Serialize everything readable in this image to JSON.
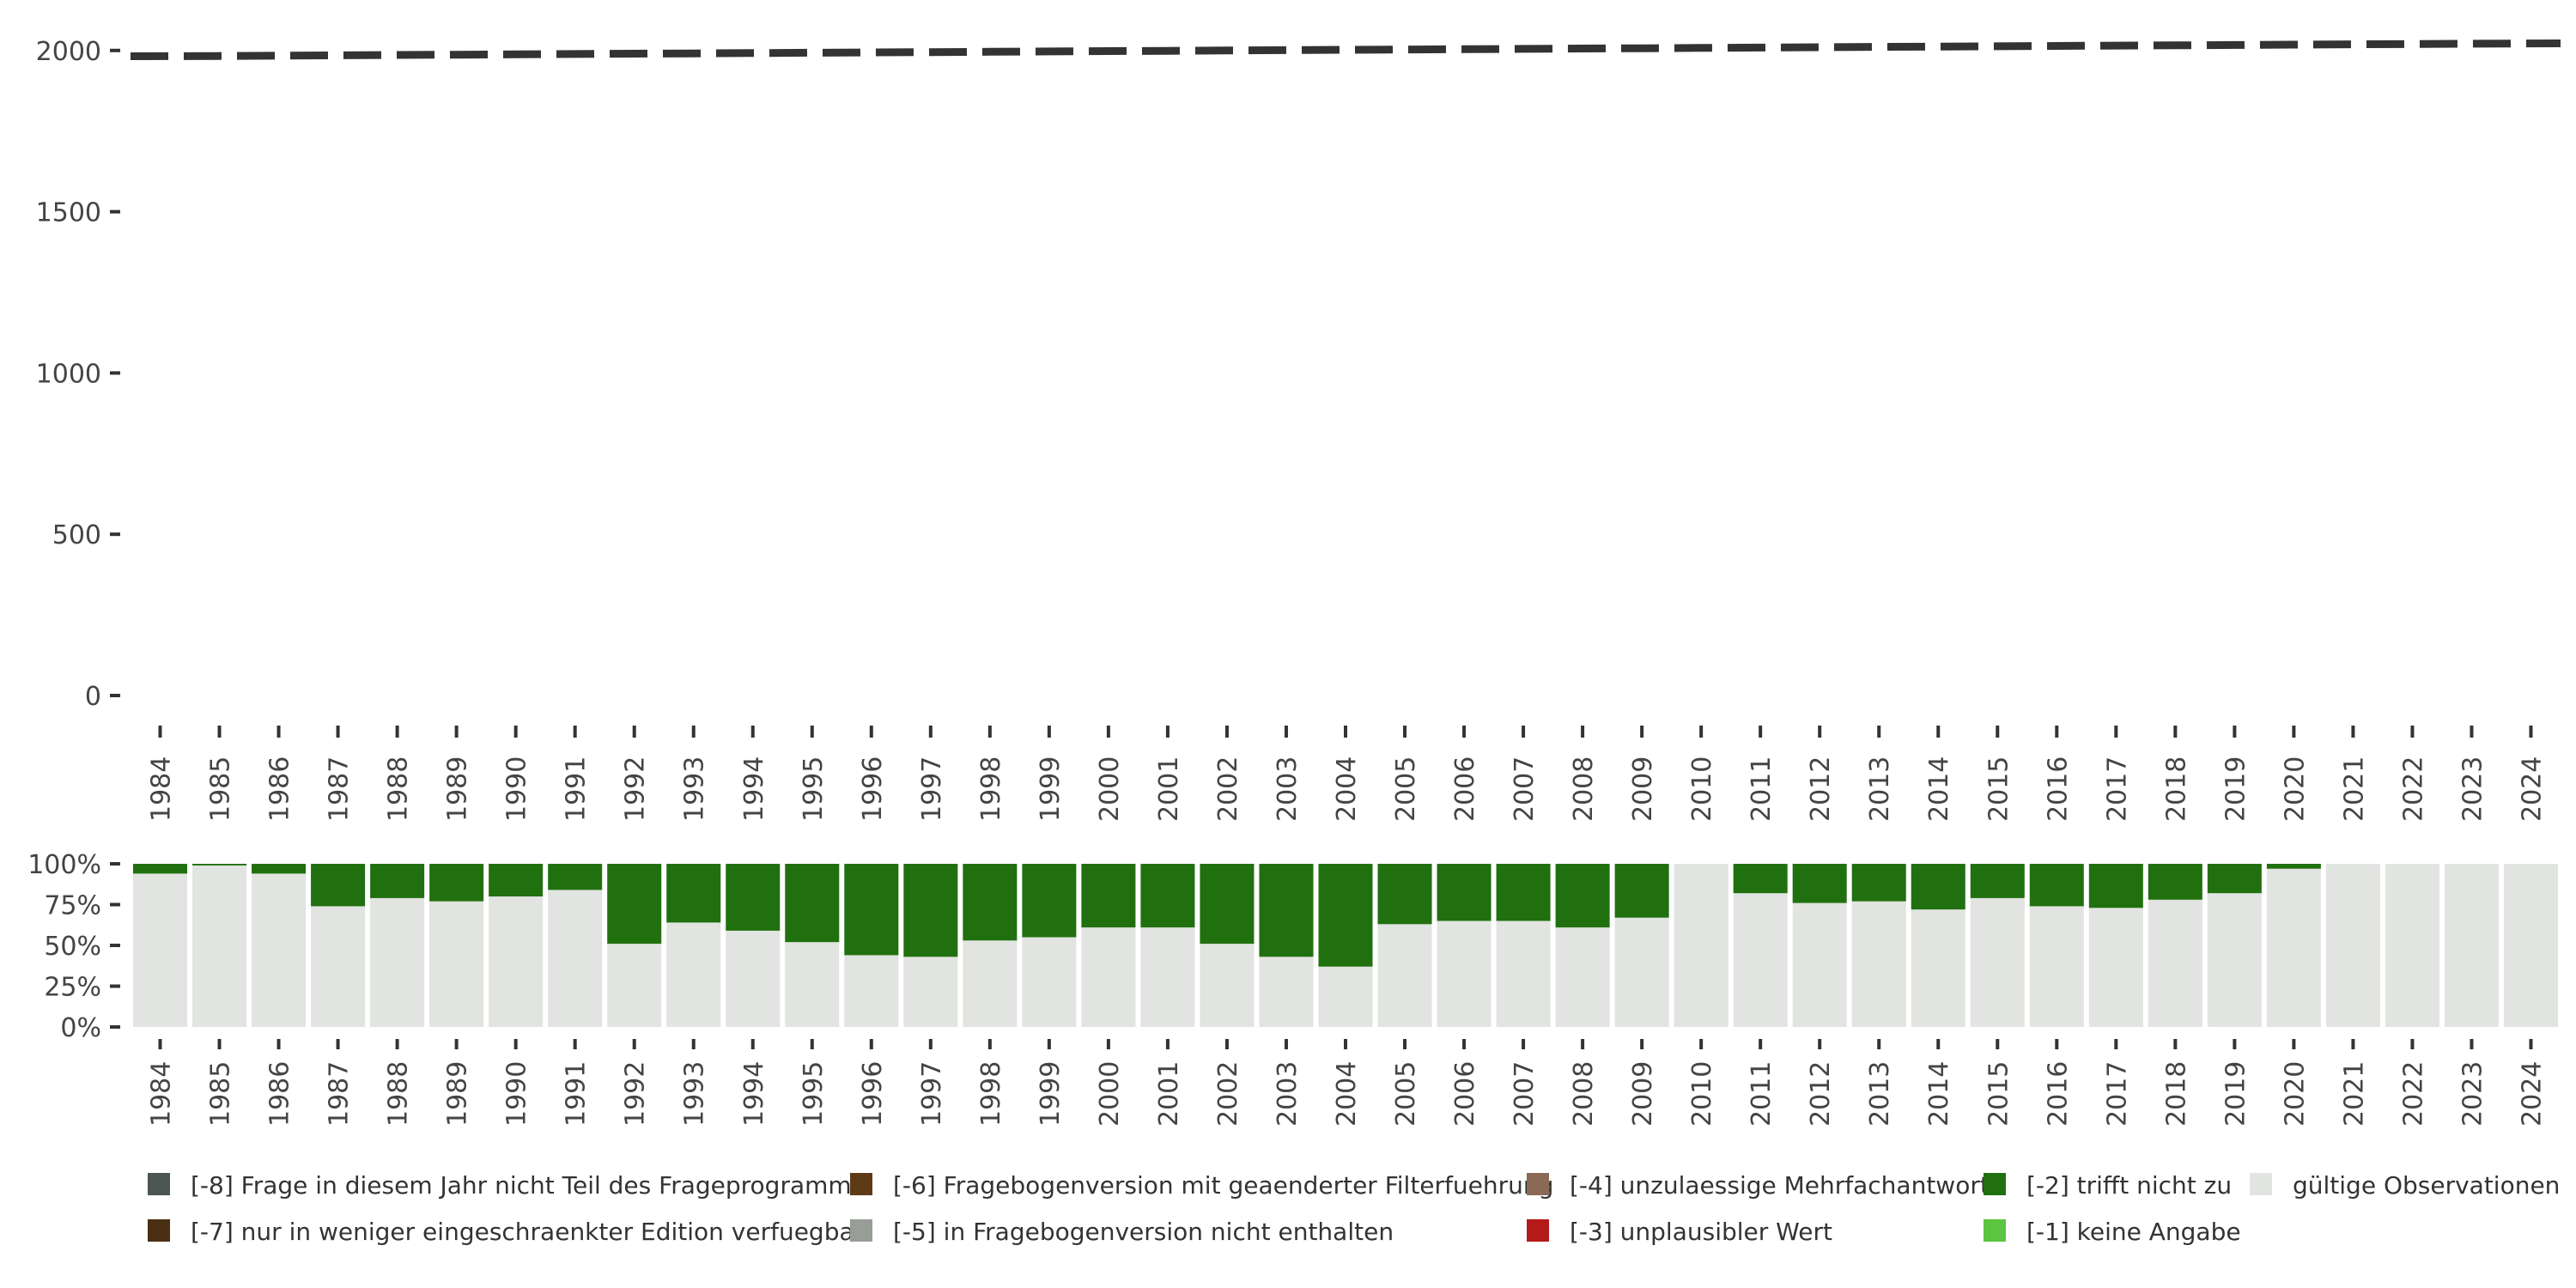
{
  "chart_data": [
    {
      "type": "line",
      "title": "",
      "xlabel": "",
      "ylabel": "",
      "x": [
        1984,
        1985,
        1986,
        1987,
        1988,
        1989,
        1990,
        1991,
        1992,
        1993,
        1994,
        1995,
        1996,
        1997,
        1998,
        1999,
        2000,
        2001,
        2002,
        2003,
        2004,
        2005,
        2006,
        2007,
        2008,
        2009,
        2010,
        2011,
        2012,
        2013,
        2014,
        2015,
        2016,
        2017,
        2018,
        2019,
        2020,
        2021,
        2022,
        2023,
        2024
      ],
      "xticks": [
        "1984",
        "1985",
        "1986",
        "1987",
        "1988",
        "1989",
        "1990",
        "1991",
        "1992",
        "1993",
        "1994",
        "1995",
        "1996",
        "1997",
        "1998",
        "1999",
        "2000",
        "2001",
        "2002",
        "2003",
        "2004",
        "2005",
        "2006",
        "2007",
        "2008",
        "2009",
        "2010",
        "2011",
        "2012",
        "2013",
        "2014",
        "2015",
        "2016",
        "2017",
        "2018",
        "2019",
        "2020",
        "2021",
        "2022",
        "2023",
        "2024"
      ],
      "yticks": [
        "0",
        "500",
        "1000",
        "1500",
        "2000"
      ],
      "ylim": [
        0,
        2050
      ],
      "series": [
        {
          "style": "dashed",
          "color": "#333333",
          "values": [
            1982,
            1983,
            1984,
            1985,
            1986,
            1987,
            1988,
            1989,
            1990,
            1991,
            1992,
            1993,
            1994,
            1995,
            1996,
            1997,
            1998,
            1999,
            2000,
            2001,
            2002,
            2003,
            2004,
            2005,
            2006,
            2007,
            2008,
            2009,
            2010,
            2011,
            2012,
            2013,
            2014,
            2015,
            2016,
            2017,
            2018,
            2019,
            2020,
            2021,
            2022
          ]
        }
      ],
      "grid": false
    },
    {
      "type": "bar",
      "stacked": true,
      "title": "",
      "xlabel": "",
      "ylabel": "",
      "categories": [
        "1984",
        "1985",
        "1986",
        "1987",
        "1988",
        "1989",
        "1990",
        "1991",
        "1992",
        "1993",
        "1994",
        "1995",
        "1996",
        "1997",
        "1998",
        "1999",
        "2000",
        "2001",
        "2002",
        "2003",
        "2004",
        "2005",
        "2006",
        "2007",
        "2008",
        "2009",
        "2010",
        "2011",
        "2012",
        "2013",
        "2014",
        "2015",
        "2016",
        "2017",
        "2018",
        "2019",
        "2020",
        "2021",
        "2022",
        "2023",
        "2024"
      ],
      "yticks": [
        "0%",
        "25%",
        "50%",
        "75%",
        "100%"
      ],
      "ylim": [
        0,
        100
      ],
      "series": [
        {
          "name": "gültige Observationen",
          "color": "#e1e4e0",
          "values": [
            94,
            99,
            94,
            74,
            79,
            77,
            80,
            84,
            51,
            64,
            59,
            52,
            44,
            43,
            53,
            55,
            61,
            61,
            51,
            43,
            37,
            63,
            65,
            65,
            61,
            67,
            100,
            82,
            76,
            77,
            72,
            79,
            74,
            73,
            78,
            82,
            97,
            100,
            100,
            100,
            100
          ]
        },
        {
          "name": "[-2] trifft nicht zu",
          "color": "#21700f",
          "values": [
            6,
            1,
            6,
            26,
            21,
            23,
            20,
            16,
            49,
            36,
            41,
            48,
            56,
            57,
            47,
            45,
            39,
            39,
            49,
            57,
            63,
            37,
            35,
            35,
            39,
            33,
            0,
            18,
            24,
            23,
            28,
            21,
            26,
            27,
            22,
            18,
            3,
            0,
            0,
            0,
            0
          ]
        }
      ],
      "grid": false
    }
  ],
  "legend": {
    "placement": "bottom",
    "items": [
      {
        "label": "[-8] Frage in diesem Jahr nicht Teil des Frageprogramms",
        "color": "#4c5650"
      },
      {
        "label": "[-7] nur in weniger eingeschraenkter Edition verfuegbar",
        "color": "#4a2f14"
      },
      {
        "label": "[-6] Fragebogenversion mit geaenderter Filterfuehrung",
        "color": "#5e3a17"
      },
      {
        "label": "[-5] in Fragebogenversion nicht enthalten",
        "color": "#989d97"
      },
      {
        "label": "[-4] unzulaessige Mehrfachantwort",
        "color": "#8a6a57"
      },
      {
        "label": "[-3] unplausibler Wert",
        "color": "#b51a1a"
      },
      {
        "label": "[-2] trifft nicht zu",
        "color": "#21700f"
      },
      {
        "label": "[-1] keine Angabe",
        "color": "#5bc441"
      },
      {
        "label": "gültige Observationen",
        "color": "#e1e4e0"
      }
    ]
  }
}
